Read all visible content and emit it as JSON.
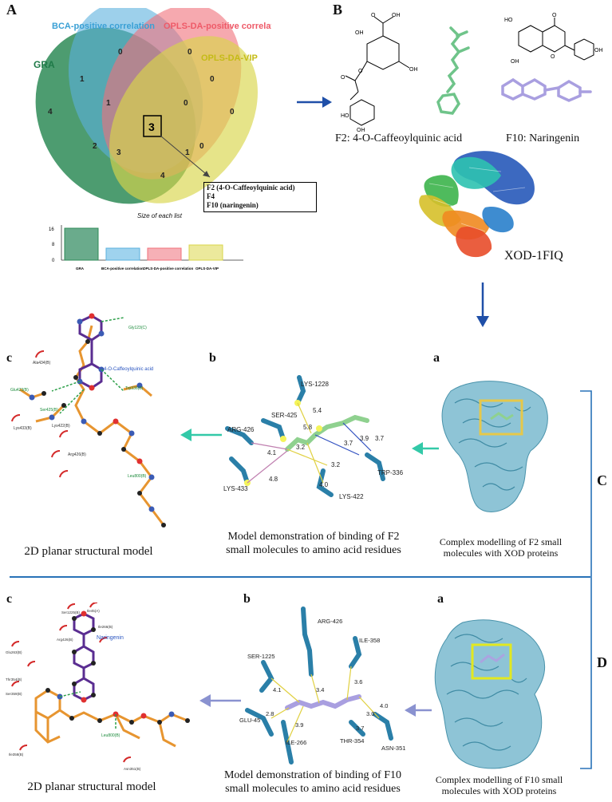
{
  "panel_A": {
    "letter": "A",
    "venn": {
      "set_labels": [
        "GRA",
        "BCA-positive correlation",
        "OPLS-DA-positive correlation",
        "OPLS-DA-VIP"
      ],
      "region_counts": [
        "0",
        "0",
        "1",
        "0",
        "4",
        "1",
        "0",
        "0",
        "0",
        "2",
        "3",
        "0",
        "0",
        "1",
        "4"
      ],
      "center": "3",
      "callout": [
        "F2 (4-O-Caffeoylquinic acid)",
        "F4",
        "F10 (naringenin)"
      ],
      "size_caption": "Size of each list"
    },
    "bar_chart": {
      "y_ticks": [
        "16",
        "8",
        "0"
      ]
    }
  },
  "panel_B": {
    "letter": "B",
    "f2_label": "F2:  4-O-Caffeoylquinic acid",
    "f10_label": "F10:  Naringenin",
    "protein_label": "XOD-1FIQ",
    "atoms_f2": [
      "OH",
      "OH",
      "O",
      "HO",
      "HO",
      "O",
      "OH",
      "HO",
      "OH"
    ],
    "atoms_f10": [
      "HO",
      "O",
      "OH",
      "O",
      "OH"
    ]
  },
  "side_labels": {
    "C": "C",
    "D": "D"
  },
  "row_C": {
    "c_letter": "c",
    "b_letter": "b",
    "a_letter": "a",
    "ligand_name": "4-O-Caffeoylquinic acid",
    "residues_2d": [
      "Gly123(C)",
      "Ala434(B)",
      "Glu423(B)",
      "Trp336(B)",
      "Ser425(B)",
      "Lys433(B)",
      "Lys422(B)",
      "Arg426(B)",
      "Leu800(B)"
    ],
    "residues_3d": [
      "LYS-1228",
      "SER-425",
      "ARG-426",
      "LYS-433",
      "LYS-422",
      "TRP-336"
    ],
    "distances": [
      "5.4",
      "5.8",
      "3.2",
      "4.1",
      "3.7",
      "3.9",
      "3.7",
      "3.2",
      "4.0",
      "4.8"
    ],
    "caption_c": "2D planar structural model",
    "caption_b": [
      "Model demonstration of binding of F2",
      "small molecules to amino acid residues"
    ],
    "caption_a": [
      "Complex modelling of F2 small",
      "molecules with XOD proteins"
    ]
  },
  "row_D": {
    "c_letter": "c",
    "b_letter": "b",
    "a_letter": "a",
    "ligand_name": "Naringenin",
    "residues_2d": [
      "Ser1225(B)",
      "Ile45(A)",
      "Ile266(B)",
      "Glu263(B)",
      "Arg426(B)",
      "Thr354(B)",
      "Ser359(B)",
      "Ile358(B)",
      "Asn351(B)",
      "Leu800(B)"
    ],
    "residues_3d": [
      "ARG-426",
      "SER-1225",
      "ILE-358",
      "GLU-45",
      "ILE-266",
      "THR-354",
      "ASN-351"
    ],
    "distances": [
      "4.1",
      "3.4",
      "3.6",
      "2.8",
      "3.9",
      "3.0",
      "4.0",
      "3.7"
    ],
    "caption_c": "2D planar structural model",
    "caption_b": [
      "Model demonstration of binding of F10",
      "small molecules to amino acid residues"
    ],
    "caption_a": [
      "Complex modelling of F10 small",
      "molecules with XOD proteins"
    ]
  },
  "colors": {
    "gra": "#2e8b57",
    "bca": "#5bb0de",
    "opls_pos": "#f0707a",
    "opls_vip": "#d9d54a",
    "arrow_blue": "#1f4fa8",
    "arrow_teal": "#33c9a8",
    "arrow_purple": "#8a92d0",
    "protein": "#7ab4c8",
    "ligand_green": "#8fd18f",
    "ligand_purple": "#aaa4e0",
    "atom_orange": "#e79530",
    "atom_blue": "#3b5bb5",
    "atom_purple": "#5a2d91"
  }
}
